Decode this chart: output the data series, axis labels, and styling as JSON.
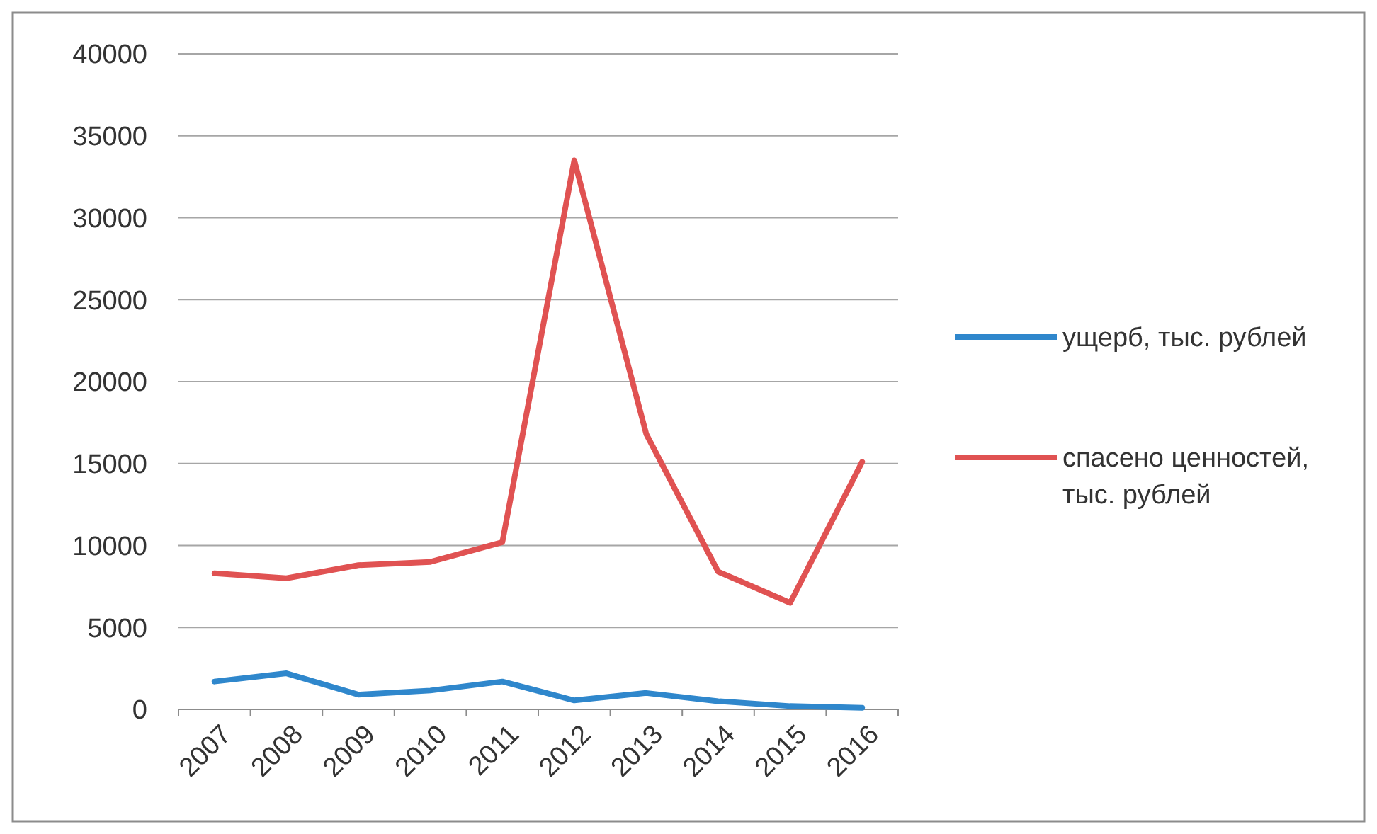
{
  "chart_data": {
    "type": "line",
    "categories": [
      "2007",
      "2008",
      "2009",
      "2010",
      "2011",
      "2012",
      "2013",
      "2014",
      "2015",
      "2016"
    ],
    "series": [
      {
        "name": "ущерб, тыс. рублей",
        "color": "#2f87cc",
        "values": [
          1700,
          2200,
          900,
          1150,
          1700,
          550,
          1000,
          500,
          200,
          100
        ]
      },
      {
        "name": "спасено ценностей, тыс. рублей",
        "color": "#e05252",
        "values": [
          8300,
          8000,
          8800,
          9000,
          10200,
          33500,
          16800,
          8400,
          6500,
          15100
        ]
      }
    ],
    "ylim": [
      0,
      40000
    ],
    "yticks": [
      0,
      5000,
      10000,
      15000,
      20000,
      25000,
      30000,
      35000,
      40000
    ],
    "grid": "y",
    "legend": "right",
    "marker": "none",
    "line_style": "solid"
  }
}
